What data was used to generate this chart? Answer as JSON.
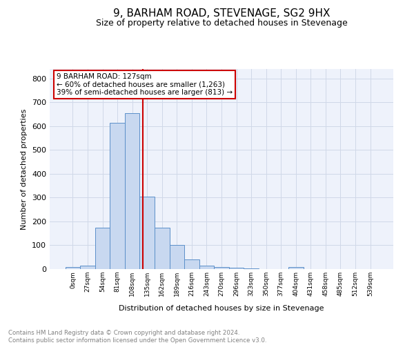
{
  "title": "9, BARHAM ROAD, STEVENAGE, SG2 9HX",
  "subtitle": "Size of property relative to detached houses in Stevenage",
  "xlabel": "Distribution of detached houses by size in Stevenage",
  "ylabel": "Number of detached properties",
  "footer_line1": "Contains HM Land Registry data © Crown copyright and database right 2024.",
  "footer_line2": "Contains public sector information licensed under the Open Government Licence v3.0.",
  "bin_labels": [
    "0sqm",
    "27sqm",
    "54sqm",
    "81sqm",
    "108sqm",
    "135sqm",
    "162sqm",
    "189sqm",
    "216sqm",
    "243sqm",
    "270sqm",
    "296sqm",
    "323sqm",
    "350sqm",
    "377sqm",
    "404sqm",
    "431sqm",
    "458sqm",
    "485sqm",
    "512sqm",
    "539sqm"
  ],
  "bin_values": [
    8,
    15,
    175,
    615,
    655,
    305,
    175,
    100,
    42,
    15,
    10,
    5,
    2,
    0,
    0,
    8,
    0,
    0,
    0,
    0,
    0
  ],
  "bar_color": "#c8d8f0",
  "bar_edge_color": "#5b8fc9",
  "grid_color": "#d0d8e8",
  "bg_color": "#eef2fb",
  "marker_color": "#cc0000",
  "annotation_text_line1": "9 BARHAM ROAD: 127sqm",
  "annotation_text_line2": "← 60% of detached houses are smaller (1,263)",
  "annotation_text_line3": "39% of semi-detached houses are larger (813) →",
  "annotation_box_color": "#cc0000",
  "ylim": [
    0,
    840
  ],
  "yticks": [
    0,
    100,
    200,
    300,
    400,
    500,
    600,
    700,
    800
  ]
}
